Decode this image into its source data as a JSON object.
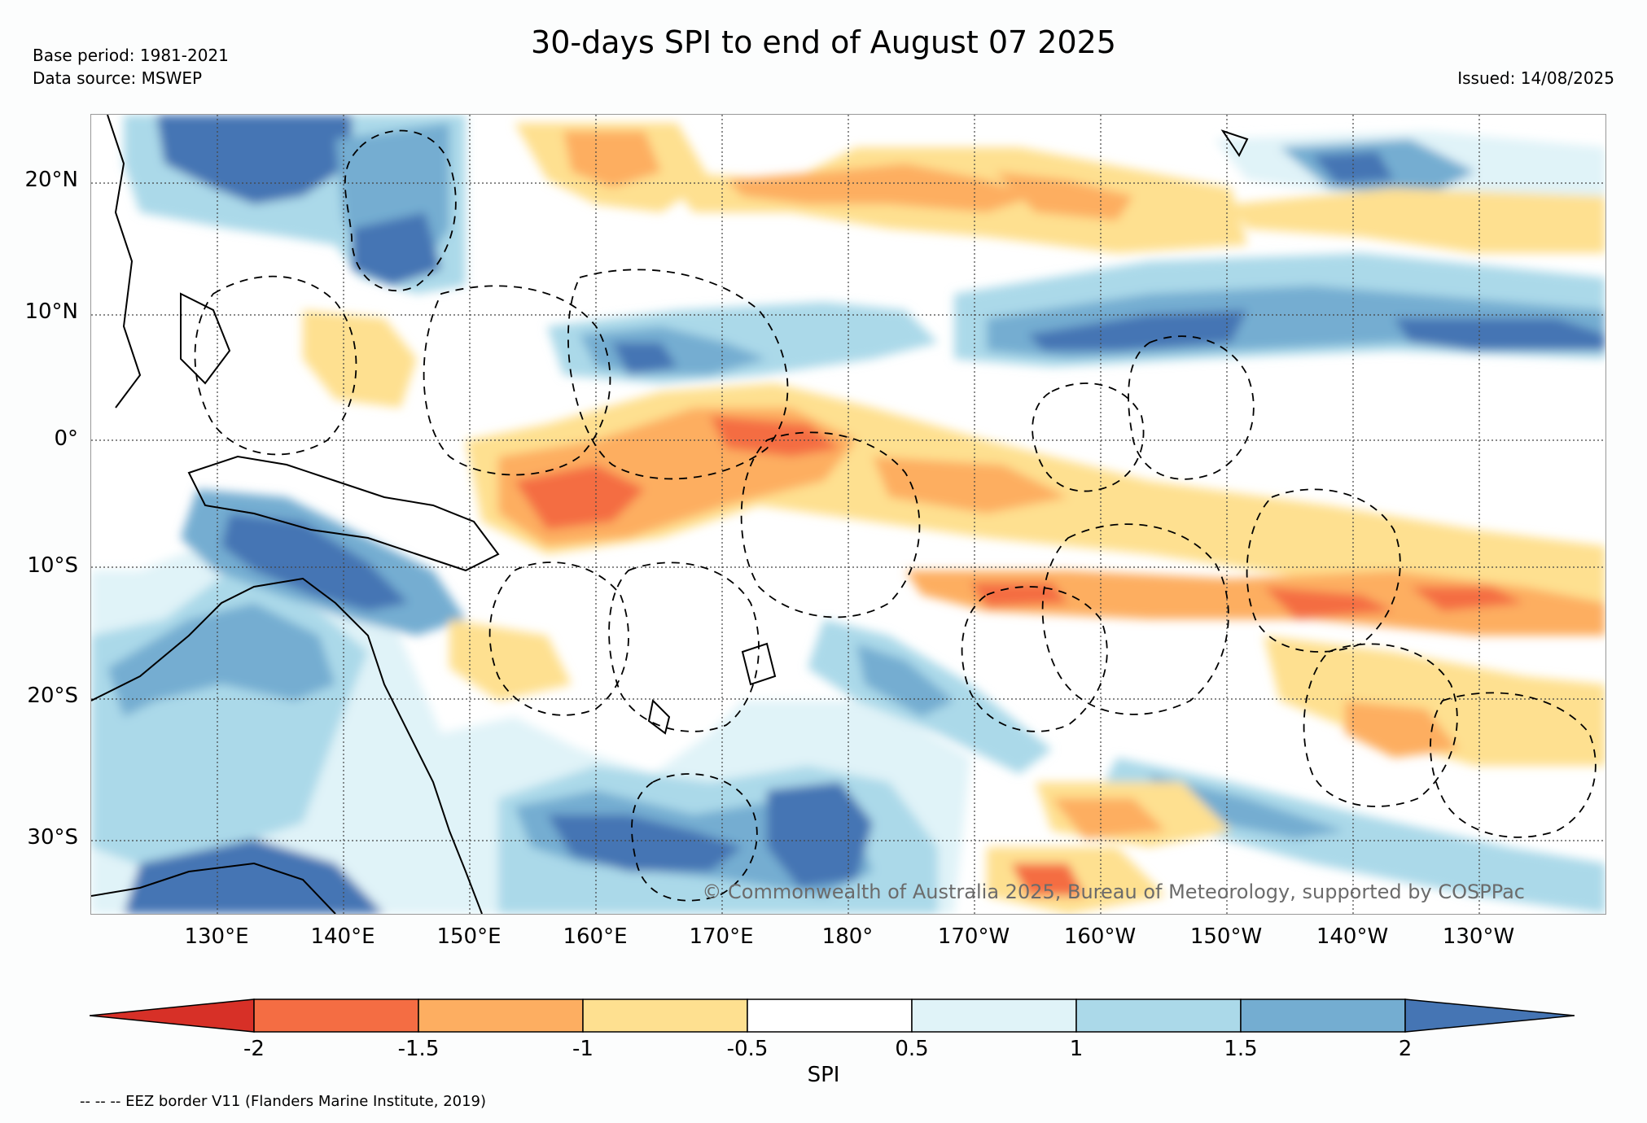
{
  "header": {
    "title": "30-days SPI to end of August 07 2025",
    "base_period": "Base period: 1981-2021",
    "data_source": "Data source: MSWEP",
    "issued": "Issued: 14/08/2025"
  },
  "map": {
    "lat_labels": [
      "20°N",
      "10°N",
      "0°",
      "10°S",
      "20°S",
      "30°S"
    ],
    "lon_labels": [
      "130°E",
      "140°E",
      "150°E",
      "160°E",
      "170°E",
      "180°",
      "170°W",
      "160°W",
      "150°W",
      "140°W",
      "130°W"
    ],
    "copyright": "© Commonwealth of Australia 2025, Bureau of Meteorology, supported by COSPPac"
  },
  "colorbar": {
    "label": "SPI",
    "ticks": [
      "-2",
      "-1.5",
      "-1",
      "-0.5",
      "0.5",
      "1",
      "1.5",
      "2"
    ],
    "colors": [
      "#d73027",
      "#f46d43",
      "#fdae61",
      "#fee090",
      "#ffffff",
      "#e0f3f8",
      "#abd9e9",
      "#74add1",
      "#4575b4"
    ]
  },
  "footer": {
    "eez_note": "-- -- -- EEZ border V11 (Flanders Marine Institute, 2019)"
  }
}
